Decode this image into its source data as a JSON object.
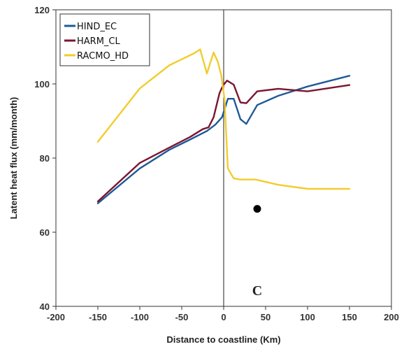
{
  "chart_data": {
    "type": "line",
    "title": "",
    "xlabel": "Distance to coastline (Km)",
    "ylabel": "Latent heat flux (mm/month)",
    "xlim": [
      -200,
      200
    ],
    "ylim": [
      40,
      120
    ],
    "xticks": [
      "-200",
      "-150",
      "-100",
      "-50",
      "0",
      "50",
      "100",
      "150",
      "200"
    ],
    "yticks": [
      "40",
      "60",
      "80",
      "100",
      "120"
    ],
    "grid": false,
    "legend_position": "top-left",
    "panel_label": "C",
    "series": [
      {
        "name": "HIND_EC",
        "color": "#1f5a96",
        "x": [
          -150,
          -100,
          -65,
          -40,
          -20,
          -10,
          -2,
          5,
          12,
          20,
          27,
          40,
          65,
          100,
          150
        ],
        "y": [
          67.8,
          77.2,
          82.2,
          85.0,
          87.3,
          89.0,
          91.0,
          96.0,
          96.0,
          90.5,
          89.2,
          94.3,
          96.8,
          99.3,
          102.2
        ]
      },
      {
        "name": "HARM_CL",
        "color": "#7b1530",
        "x": [
          -150,
          -100,
          -65,
          -40,
          -25,
          -18,
          -12,
          -5,
          -1,
          4,
          12,
          20,
          27,
          40,
          65,
          100,
          150
        ],
        "y": [
          68.3,
          78.7,
          82.8,
          85.7,
          87.8,
          88.3,
          91.0,
          97.5,
          99.5,
          100.9,
          99.8,
          95.0,
          94.8,
          98.0,
          98.7,
          98.0,
          99.7
        ]
      },
      {
        "name": "RACMO_HD",
        "color": "#f2cc2e",
        "x": [
          -150,
          -100,
          -65,
          -35,
          -28,
          -20,
          -12,
          -7,
          -3,
          1,
          5,
          12,
          20,
          38,
          65,
          100,
          150
        ],
        "y": [
          84.4,
          98.8,
          105.0,
          108.3,
          109.3,
          102.8,
          108.5,
          106.0,
          102.5,
          96.0,
          77.2,
          74.5,
          74.2,
          74.2,
          72.8,
          71.7,
          71.7
        ]
      }
    ],
    "annotations": [
      {
        "type": "vertical-line",
        "x": 0
      },
      {
        "type": "dot",
        "x": 40,
        "y": 66.3
      }
    ]
  }
}
